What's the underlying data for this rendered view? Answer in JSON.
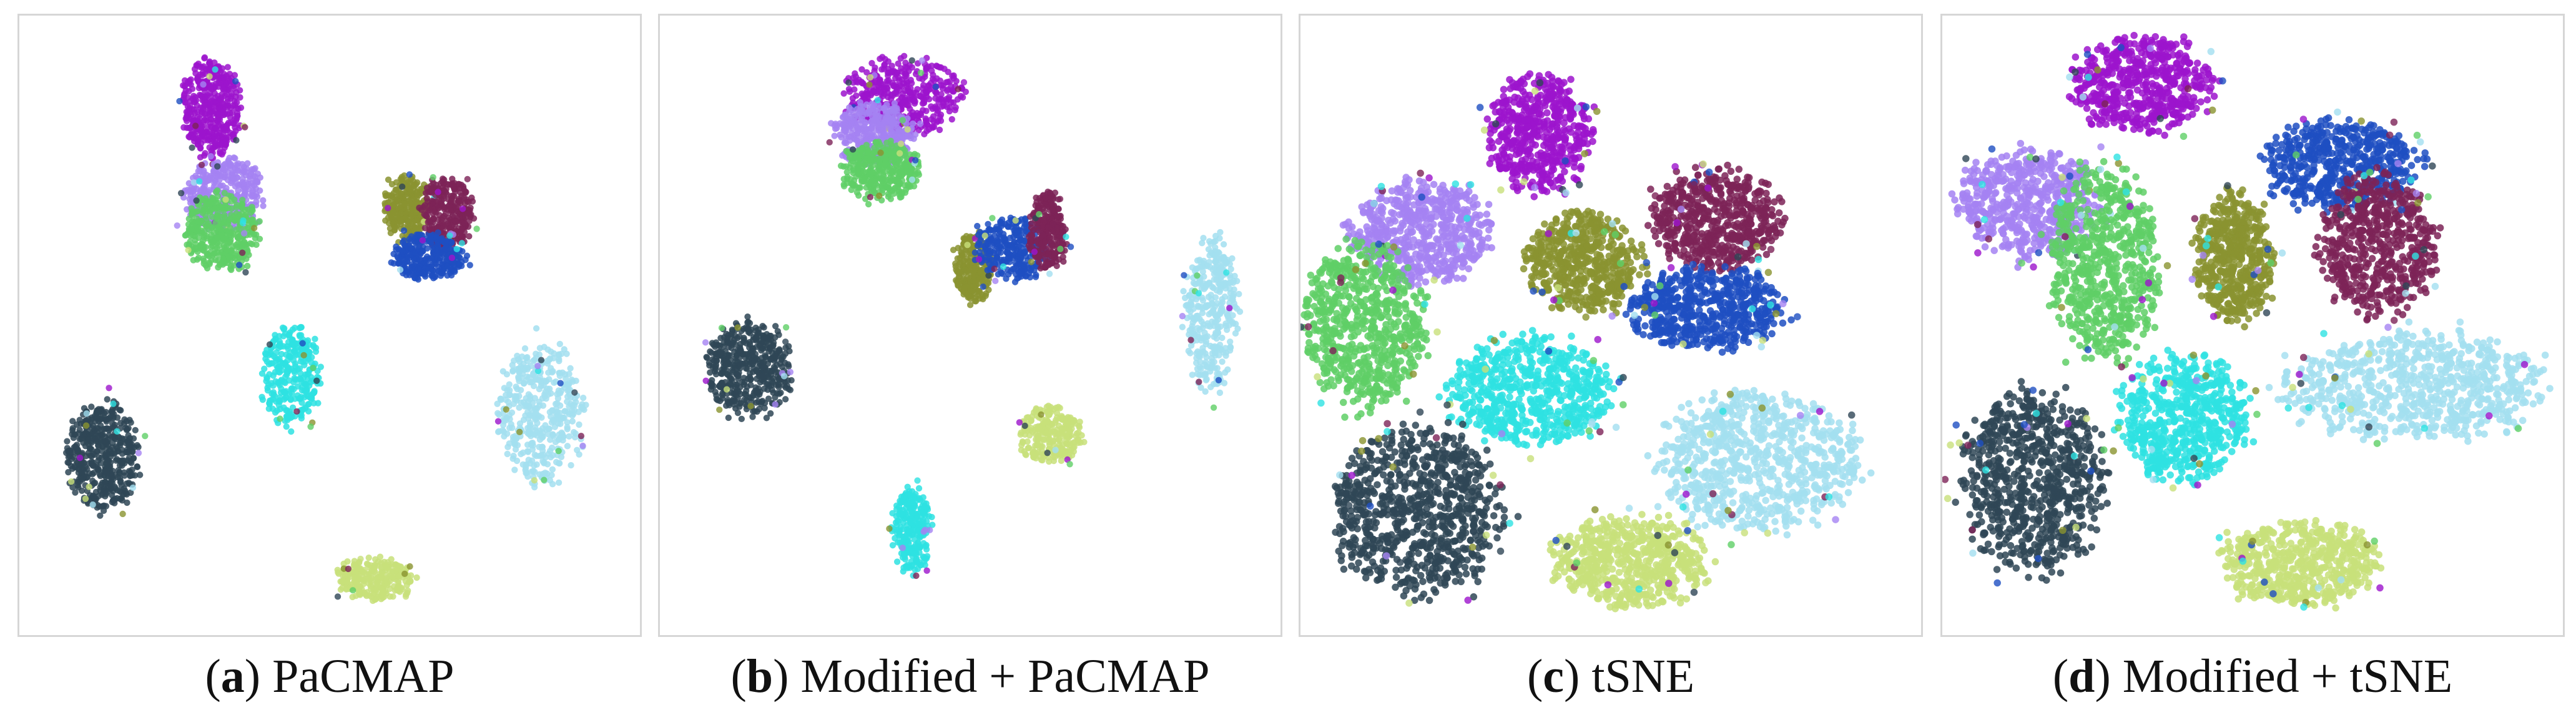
{
  "colors": {
    "purple": "#9c14cc",
    "lavender": "#a583f2",
    "green": "#5fcf66",
    "olive": "#8a9330",
    "maroon": "#7d2357",
    "blue": "#1e4fc2",
    "cyan": "#2ee2e2",
    "dark_slate": "#2f4656",
    "light_blue": "#a3dff0",
    "yellow_green": "#c8e07a"
  },
  "chart_data": [
    {
      "type": "scatter",
      "title": "",
      "caption": {
        "prefix": "(",
        "letter": "a",
        "suffix": ") PaCMAP"
      },
      "grid": false,
      "legend": "none",
      "clusters": [
        {
          "color": "purple",
          "center": [
            0.31,
            0.15
          ],
          "size": [
            0.045,
            0.075
          ],
          "count": 420
        },
        {
          "color": "lavender",
          "center": [
            0.33,
            0.29
          ],
          "size": [
            0.06,
            0.06
          ],
          "count": 380
        },
        {
          "color": "green",
          "center": [
            0.325,
            0.35
          ],
          "size": [
            0.058,
            0.06
          ],
          "count": 380
        },
        {
          "color": "olive",
          "center": [
            0.625,
            0.31
          ],
          "size": [
            0.035,
            0.05
          ],
          "count": 260
        },
        {
          "color": "maroon",
          "center": [
            0.69,
            0.32
          ],
          "size": [
            0.04,
            0.055
          ],
          "count": 300
        },
        {
          "color": "blue",
          "center": [
            0.66,
            0.39
          ],
          "size": [
            0.06,
            0.035
          ],
          "count": 300
        },
        {
          "color": "cyan",
          "center": [
            0.435,
            0.58
          ],
          "size": [
            0.045,
            0.08
          ],
          "count": 300
        },
        {
          "color": "dark_slate",
          "center": [
            0.135,
            0.71
          ],
          "size": [
            0.055,
            0.085
          ],
          "count": 460
        },
        {
          "color": "light_blue",
          "center": [
            0.84,
            0.64
          ],
          "size": [
            0.065,
            0.11
          ],
          "count": 420
        },
        {
          "color": "yellow_green",
          "center": [
            0.57,
            0.91
          ],
          "size": [
            0.06,
            0.032
          ],
          "count": 260
        }
      ]
    },
    {
      "type": "scatter",
      "title": "",
      "caption": {
        "prefix": "(",
        "letter": "b",
        "suffix": ") Modified + PaCMAP"
      },
      "grid": false,
      "legend": "none",
      "clusters": [
        {
          "color": "purple",
          "center": [
            0.39,
            0.13
          ],
          "size": [
            0.09,
            0.06
          ],
          "count": 420
        },
        {
          "color": "lavender",
          "center": [
            0.345,
            0.19
          ],
          "size": [
            0.06,
            0.05
          ],
          "count": 380
        },
        {
          "color": "green",
          "center": [
            0.355,
            0.25
          ],
          "size": [
            0.06,
            0.045
          ],
          "count": 360
        },
        {
          "color": "olive",
          "center": [
            0.505,
            0.41
          ],
          "size": [
            0.03,
            0.055
          ],
          "count": 260
        },
        {
          "color": "blue",
          "center": [
            0.57,
            0.375
          ],
          "size": [
            0.055,
            0.05
          ],
          "count": 300
        },
        {
          "color": "maroon",
          "center": [
            0.625,
            0.35
          ],
          "size": [
            0.03,
            0.06
          ],
          "count": 280
        },
        {
          "color": "light_blue",
          "center": [
            0.89,
            0.48
          ],
          "size": [
            0.04,
            0.12
          ],
          "count": 360
        },
        {
          "color": "dark_slate",
          "center": [
            0.145,
            0.57
          ],
          "size": [
            0.065,
            0.075
          ],
          "count": 460
        },
        {
          "color": "yellow_green",
          "center": [
            0.63,
            0.675
          ],
          "size": [
            0.05,
            0.045
          ],
          "count": 240
        },
        {
          "color": "cyan",
          "center": [
            0.405,
            0.83
          ],
          "size": [
            0.03,
            0.07
          ],
          "count": 260
        }
      ]
    },
    {
      "type": "scatter",
      "title": "",
      "caption": {
        "prefix": "(",
        "letter": "c",
        "suffix": ") tSNE"
      },
      "grid": false,
      "legend": "none",
      "clusters": [
        {
          "color": "purple",
          "center": [
            0.385,
            0.19
          ],
          "size": [
            0.08,
            0.09
          ],
          "count": 520
        },
        {
          "color": "lavender",
          "center": [
            0.195,
            0.35
          ],
          "size": [
            0.11,
            0.08
          ],
          "count": 560
        },
        {
          "color": "maroon",
          "center": [
            0.67,
            0.33
          ],
          "size": [
            0.1,
            0.08
          ],
          "count": 560
        },
        {
          "color": "olive",
          "center": [
            0.455,
            0.4
          ],
          "size": [
            0.09,
            0.08
          ],
          "count": 520
        },
        {
          "color": "blue",
          "center": [
            0.65,
            0.47
          ],
          "size": [
            0.12,
            0.065
          ],
          "count": 560
        },
        {
          "color": "green",
          "center": [
            0.105,
            0.5
          ],
          "size": [
            0.095,
            0.13
          ],
          "count": 640
        },
        {
          "color": "cyan",
          "center": [
            0.37,
            0.605
          ],
          "size": [
            0.13,
            0.085
          ],
          "count": 620
        },
        {
          "color": "light_blue",
          "center": [
            0.74,
            0.72
          ],
          "size": [
            0.16,
            0.11
          ],
          "count": 760
        },
        {
          "color": "dark_slate",
          "center": [
            0.19,
            0.8
          ],
          "size": [
            0.13,
            0.13
          ],
          "count": 800
        },
        {
          "color": "yellow_green",
          "center": [
            0.53,
            0.88
          ],
          "size": [
            0.12,
            0.07
          ],
          "count": 600
        }
      ]
    },
    {
      "type": "scatter",
      "title": "",
      "caption": {
        "prefix": "(",
        "letter": "d",
        "suffix": ") Modified + tSNE"
      },
      "grid": false,
      "legend": "none",
      "clusters": [
        {
          "color": "purple",
          "center": [
            0.325,
            0.11
          ],
          "size": [
            0.11,
            0.075
          ],
          "count": 560
        },
        {
          "color": "blue",
          "center": [
            0.64,
            0.24
          ],
          "size": [
            0.12,
            0.07
          ],
          "count": 520
        },
        {
          "color": "lavender",
          "center": [
            0.14,
            0.3
          ],
          "size": [
            0.11,
            0.085
          ],
          "count": 560
        },
        {
          "color": "green",
          "center": [
            0.26,
            0.4
          ],
          "size": [
            0.085,
            0.15
          ],
          "count": 640
        },
        {
          "color": "maroon",
          "center": [
            0.7,
            0.37
          ],
          "size": [
            0.09,
            0.11
          ],
          "count": 560
        },
        {
          "color": "olive",
          "center": [
            0.47,
            0.39
          ],
          "size": [
            0.06,
            0.1
          ],
          "count": 500
        },
        {
          "color": "cyan",
          "center": [
            0.39,
            0.65
          ],
          "size": [
            0.1,
            0.1
          ],
          "count": 600
        },
        {
          "color": "light_blue",
          "center": [
            0.76,
            0.6
          ],
          "size": [
            0.2,
            0.085
          ],
          "count": 720
        },
        {
          "color": "dark_slate",
          "center": [
            0.145,
            0.75
          ],
          "size": [
            0.11,
            0.14
          ],
          "count": 760
        },
        {
          "color": "yellow_green",
          "center": [
            0.575,
            0.885
          ],
          "size": [
            0.12,
            0.065
          ],
          "count": 560
        }
      ]
    }
  ]
}
